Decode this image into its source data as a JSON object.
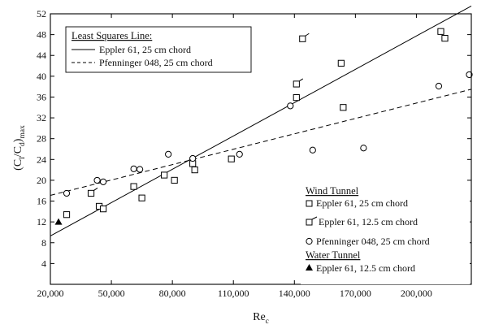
{
  "chart_data": {
    "type": "scatter",
    "xlabel": "Re",
    "xlabel_sub": "c",
    "ylabel_main": "(C",
    "ylabel_sub1": "l",
    "ylabel_mid": "/C",
    "ylabel_sub2": "d",
    "ylabel_end": ")",
    "ylabel_sub3": "max",
    "xlim": [
      20000,
      227000
    ],
    "ylim": [
      0,
      52
    ],
    "xticks": [
      20000,
      50000,
      80000,
      110000,
      140000,
      170000,
      200000
    ],
    "xtick_labels": [
      "20,000",
      "50,000",
      "80,000",
      "110,000",
      "140,000",
      "170,000",
      "200,000"
    ],
    "yticks": [
      4,
      8,
      12,
      16,
      20,
      24,
      28,
      32,
      36,
      40,
      44,
      48,
      52
    ],
    "ytick_labels": [
      "4",
      "8",
      "12",
      "16",
      "20",
      "24",
      "28",
      "32",
      "36",
      "40",
      "44",
      "48",
      "52"
    ],
    "lines_legend": {
      "title": "Least Squares Line:",
      "entries": [
        {
          "label": "Eppler 61, 25 cm chord",
          "style": "solid"
        },
        {
          "label": "Pfenninger 048, 25 cm chord",
          "style": "dashed"
        }
      ]
    },
    "lines": [
      {
        "name": "Eppler 61, 25 cm chord",
        "style": "solid",
        "points": [
          [
            20000,
            9.3
          ],
          [
            227000,
            53.5
          ]
        ]
      },
      {
        "name": "Pfenninger 048, 25 cm chord",
        "style": "dashed",
        "points": [
          [
            20000,
            17.1
          ],
          [
            227000,
            37.5
          ]
        ]
      }
    ],
    "markers_legend": {
      "group1_title": "Wind Tunnel",
      "group2_title": "Water Tunnel",
      "entries": [
        {
          "marker": "square",
          "label": "Eppler 61, 25 cm chord",
          "group": 1
        },
        {
          "marker": "square-tick",
          "label": "Eppler 61, 12.5 cm chord",
          "group": 1
        },
        {
          "marker": "circle",
          "label": "Pfenninger 048, 25 cm chord",
          "group": 1
        },
        {
          "marker": "triangle",
          "label": "Eppler 61, 12.5 cm chord",
          "group": 2
        }
      ]
    },
    "series": [
      {
        "name": "Eppler 61, 25 cm chord",
        "marker": "square",
        "points": [
          [
            28000,
            13.4
          ],
          [
            44000,
            15.0
          ],
          [
            46000,
            14.5
          ],
          [
            61000,
            18.8
          ],
          [
            65000,
            16.6
          ],
          [
            76000,
            21.0
          ],
          [
            81000,
            20.0
          ],
          [
            90000,
            23.2
          ],
          [
            91000,
            22.0
          ],
          [
            109000,
            24.1
          ],
          [
            141000,
            35.9
          ],
          [
            163000,
            42.5
          ],
          [
            164000,
            34.0
          ],
          [
            212000,
            48.6
          ],
          [
            214000,
            47.3
          ]
        ]
      },
      {
        "name": "Eppler 61, 12.5 cm chord",
        "marker": "square-tick",
        "points": [
          [
            40000,
            17.5
          ],
          [
            141000,
            38.5
          ],
          [
            144000,
            47.2
          ]
        ]
      },
      {
        "name": "Pfenninger 048, 25 cm chord",
        "marker": "circle",
        "points": [
          [
            28000,
            17.5
          ],
          [
            43000,
            20.0
          ],
          [
            46000,
            19.7
          ],
          [
            61000,
            22.2
          ],
          [
            64000,
            22.1
          ],
          [
            78000,
            25.0
          ],
          [
            90000,
            24.2
          ],
          [
            113000,
            25.0
          ],
          [
            138000,
            34.3
          ],
          [
            149000,
            25.8
          ],
          [
            174000,
            26.2
          ],
          [
            211000,
            38.1
          ],
          [
            226000,
            40.3
          ]
        ]
      },
      {
        "name": "Eppler 61, 12.5 cm chord (water tunnel)",
        "marker": "triangle",
        "points": [
          [
            24000,
            12.0
          ]
        ]
      }
    ]
  }
}
